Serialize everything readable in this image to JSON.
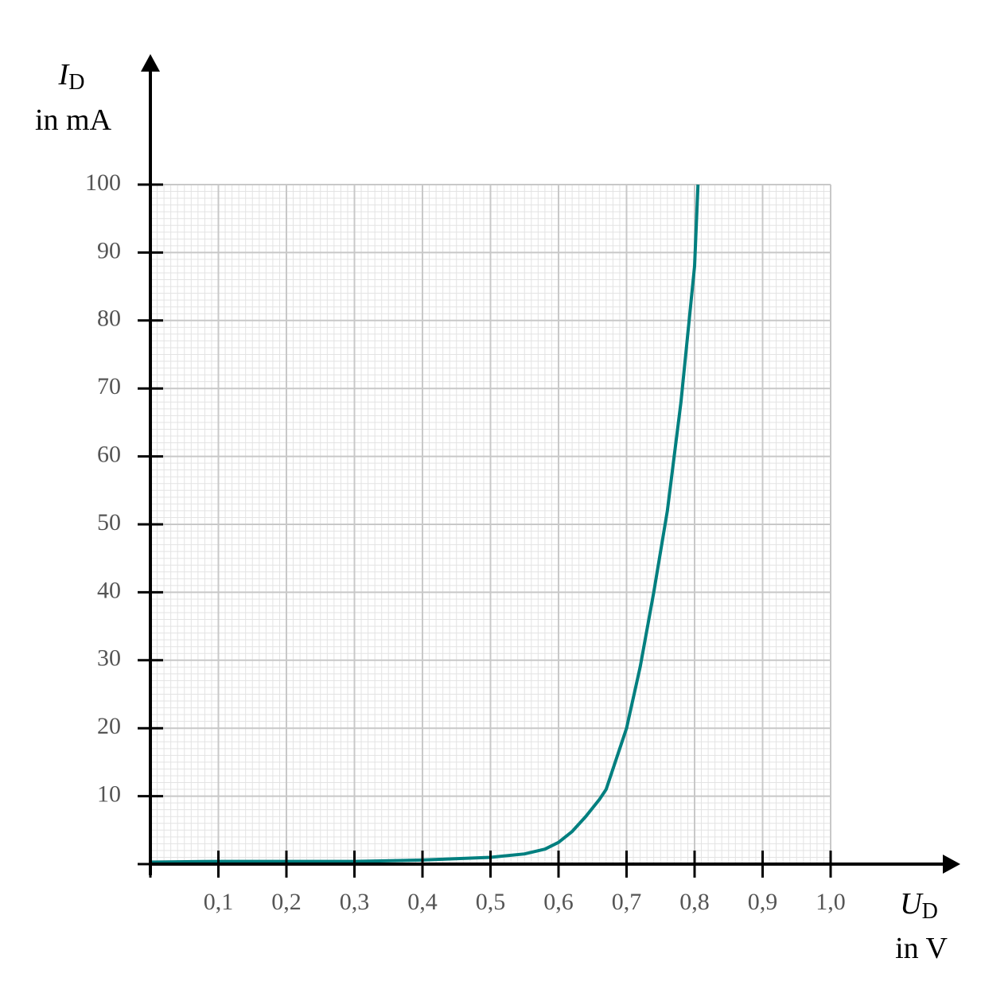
{
  "chart_data": {
    "type": "line",
    "x_label": {
      "symbol": "U",
      "subscript": "D",
      "unit": "in V"
    },
    "y_label": {
      "symbol": "I",
      "subscript": "D",
      "unit": "in mA"
    },
    "x": [
      0,
      0.1,
      0.2,
      0.3,
      0.4,
      0.5,
      0.55,
      0.58,
      0.6,
      0.62,
      0.64,
      0.66,
      0.67,
      0.68,
      0.69,
      0.7,
      0.72,
      0.74,
      0.76,
      0.78,
      0.8,
      0.805
    ],
    "series": [
      {
        "color": "#007f7f",
        "values": [
          0.3,
          0.4,
          0.4,
          0.4,
          0.6,
          1.0,
          1.5,
          2.2,
          3.2,
          4.8,
          7,
          9.5,
          11,
          14,
          17,
          20,
          29,
          40,
          52,
          68,
          88,
          100
        ]
      }
    ],
    "xlim": [
      0,
      1.0
    ],
    "ylim": [
      0,
      100
    ],
    "xticks": [
      {
        "value": 0.1,
        "label": "0,1"
      },
      {
        "value": 0.2,
        "label": "0,2"
      },
      {
        "value": 0.3,
        "label": "0,3"
      },
      {
        "value": 0.4,
        "label": "0,4"
      },
      {
        "value": 0.5,
        "label": "0,5"
      },
      {
        "value": 0.6,
        "label": "0,6"
      },
      {
        "value": 0.7,
        "label": "0,7"
      },
      {
        "value": 0.8,
        "label": "0,8"
      },
      {
        "value": 0.9,
        "label": "0,9"
      },
      {
        "value": 1.0,
        "label": "1,0"
      }
    ],
    "yticks": [
      10,
      20,
      30,
      40,
      50,
      60,
      70,
      80,
      90,
      100
    ],
    "grid": true
  }
}
